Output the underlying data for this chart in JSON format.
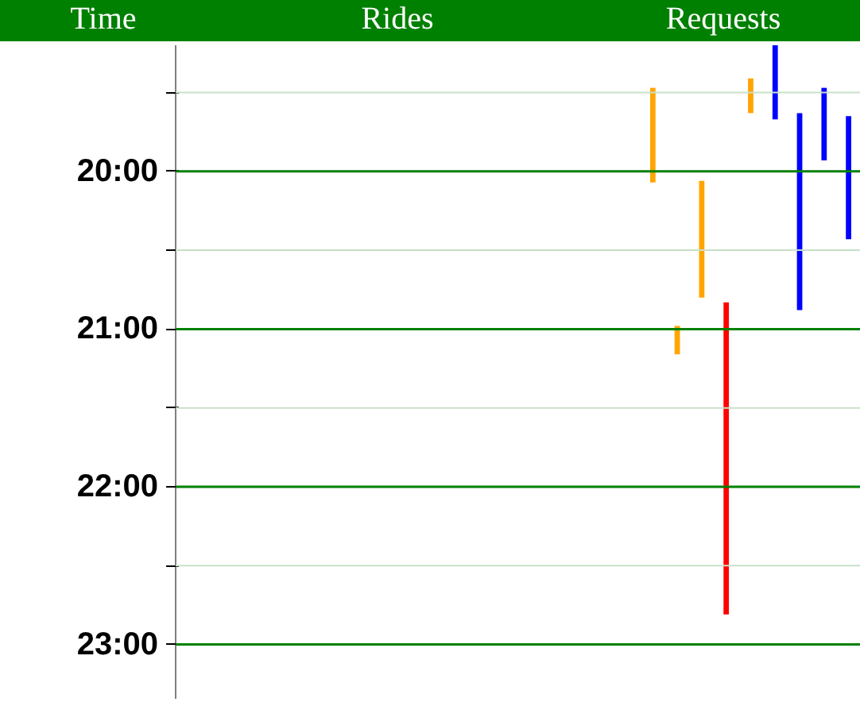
{
  "chart_data": {
    "type": "bar",
    "annotations": [
      "Time",
      "Rides",
      "Requests"
    ],
    "categories": [
      null,
      null,
      null,
      null,
      null,
      null,
      null,
      null,
      null,
      null,
      null,
      null,
      null,
      null,
      null,
      null,
      null,
      null,
      null,
      null,
      null,
      null,
      null,
      null,
      null,
      null,
      null,
      null
    ],
    "base": [
      null,
      null,
      null,
      null,
      null,
      null,
      null,
      null,
      null,
      null,
      null,
      null,
      null,
      null,
      null,
      null,
      null,
      null,
      null,
      19.47,
      20.98,
      20.06,
      20.83,
      19.41,
      19.2,
      19.63,
      19.47,
      19.65
    ],
    "values": [
      null,
      null,
      null,
      null,
      null,
      null,
      null,
      null,
      null,
      null,
      null,
      null,
      null,
      null,
      null,
      null,
      null,
      null,
      null,
      0.6,
      0.18,
      0.74,
      1.98,
      0.22,
      0.47,
      1.25,
      0.46,
      0.78
    ],
    "colors": [
      "#ffa500",
      "#ffa500",
      "#ffa500",
      "#ffa500",
      "#ffa500",
      "#ffa500",
      "#ffa500",
      "#ffa500",
      "#ffa500",
      "#ffa500",
      "#ffa500",
      "#ffa500",
      "#ffa500",
      "#ffa500",
      "#ffa500",
      "#ffa500",
      "#ffa500",
      "#ffa500",
      "#ffa500",
      "#ffa500",
      "#ffa500",
      "#ffa500",
      "#ff0000",
      "#ffa500",
      "#0000ff",
      "#0000ff",
      "#0000ff",
      "#0000ff"
    ],
    "ylim": [
      23.35,
      19.2
    ],
    "yticks": [
      {
        "value": 19.5,
        "label": null
      },
      {
        "value": 20,
        "label": "20:00"
      },
      {
        "value": 20.5,
        "label": null
      },
      {
        "value": 21,
        "label": "21:00"
      },
      {
        "value": 21.5,
        "label": null
      },
      {
        "value": 22,
        "label": "22:00"
      },
      {
        "value": 22.5,
        "label": null
      },
      {
        "value": 23,
        "label": "23:00"
      }
    ],
    "grid": "y"
  }
}
